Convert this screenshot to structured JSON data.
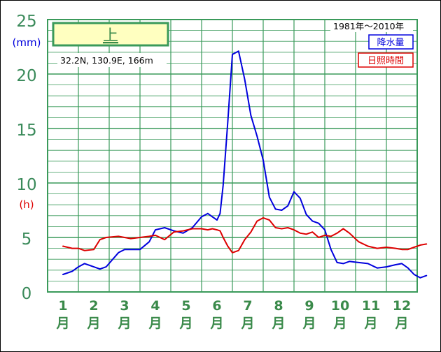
{
  "chart_data": {
    "type": "line",
    "station_name": "上",
    "location": "32.2N,  130.9E,  166m",
    "period": "1981年～2010年",
    "y_units": [
      "(mm)",
      "(h)"
    ],
    "y_ticks": [
      "25",
      "20",
      "15",
      "10",
      "5",
      "0"
    ],
    "ylim": [
      0,
      25
    ],
    "grid": true,
    "legend_position": "top-right",
    "months": [
      {
        "num": "1",
        "unit": "月"
      },
      {
        "num": "2",
        "unit": "月"
      },
      {
        "num": "3",
        "unit": "月"
      },
      {
        "num": "4",
        "unit": "月"
      },
      {
        "num": "5",
        "unit": "月"
      },
      {
        "num": "6",
        "unit": "月"
      },
      {
        "num": "7",
        "unit": "月"
      },
      {
        "num": "8",
        "unit": "月"
      },
      {
        "num": "9",
        "unit": "月"
      },
      {
        "num": "10",
        "unit": "月"
      },
      {
        "num": "11",
        "unit": "月"
      },
      {
        "num": "12",
        "unit": "月"
      }
    ],
    "x": [
      1,
      1.3,
      1.5,
      1.7,
      2,
      2.2,
      2.4,
      2.8,
      3,
      3.2,
      3.5,
      3.8,
      4,
      4.3,
      4.6,
      4.9,
      5.2,
      5.5,
      5.7,
      5.85,
      6,
      6.1,
      6.2,
      6.35,
      6.5,
      6.7,
      6.9,
      7.1,
      7.3,
      7.5,
      7.7,
      7.9,
      8.1,
      8.3,
      8.5,
      8.7,
      8.9,
      9.1,
      9.3,
      9.5,
      9.7,
      9.9,
      10.1,
      10.3,
      10.6,
      10.9,
      11.2,
      11.5,
      11.8,
      12,
      12.2,
      12.4,
      12.6,
      12.8
    ],
    "series": [
      {
        "name": "降水量",
        "color": "#0000dd",
        "values": [
          1.6,
          1.9,
          2.3,
          2.6,
          2.3,
          2.1,
          2.3,
          3.6,
          3.9,
          3.9,
          3.9,
          4.6,
          5.7,
          5.9,
          5.6,
          5.4,
          5.9,
          6.9,
          7.2,
          6.9,
          6.6,
          7.2,
          9.8,
          15.6,
          21.8,
          22.1,
          19.5,
          16.2,
          14.3,
          12.1,
          8.7,
          7.6,
          7.5,
          7.9,
          9.2,
          8.6,
          7.1,
          6.5,
          6.3,
          5.7,
          3.9,
          2.7,
          2.6,
          2.8,
          2.7,
          2.6,
          2.2,
          2.3,
          2.5,
          2.6,
          2.2,
          1.6,
          1.3,
          1.5
        ]
      },
      {
        "name": "日照時間",
        "color": "#dd0000",
        "values": [
          4.2,
          4.0,
          4.0,
          3.8,
          3.9,
          4.8,
          5.0,
          5.1,
          5.0,
          4.9,
          5.0,
          5.1,
          5.2,
          4.8,
          5.5,
          5.6,
          5.8,
          5.8,
          5.7,
          5.8,
          5.7,
          5.6,
          5.0,
          4.2,
          3.6,
          3.8,
          4.8,
          5.5,
          6.5,
          6.8,
          6.6,
          5.9,
          5.8,
          5.9,
          5.7,
          5.4,
          5.3,
          5.5,
          5.0,
          5.2,
          5.1,
          5.4,
          5.8,
          5.4,
          4.6,
          4.2,
          4.0,
          4.1,
          4.0,
          3.9,
          3.9,
          4.1,
          4.3,
          4.4
        ]
      }
    ]
  }
}
